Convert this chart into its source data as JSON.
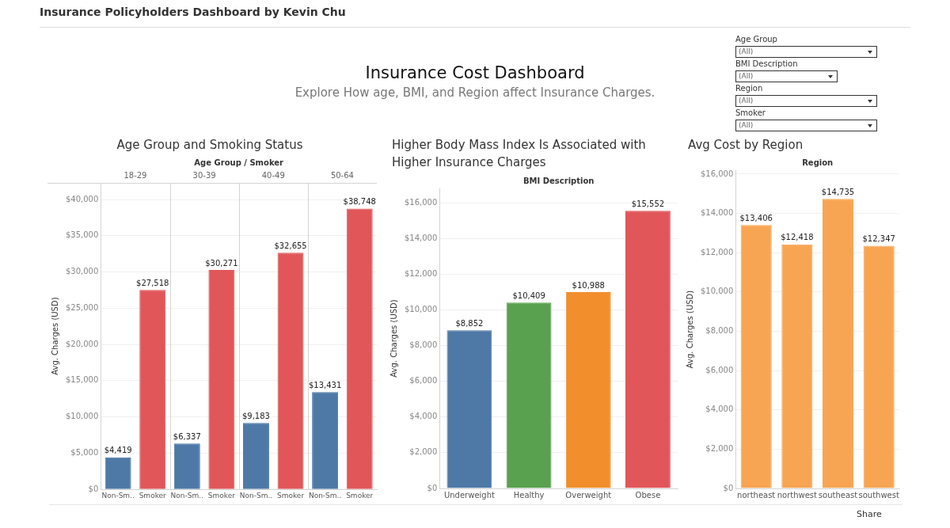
{
  "chart_data": [
    {
      "type": "other",
      "title": "Insurance Cost Dashboard",
      "subtitle": "Explore How age, BMI, and Region affect Insurance Charges.",
      "annotations": [
        "Insurance Policyholders Dashboard by Kevin Chu",
        "Age Group",
        "(All)",
        "BMI Description",
        "(All)",
        "Region",
        "(All)",
        "Smoker",
        "(All)",
        "Share"
      ]
    },
    {
      "type": "bar",
      "title": "Age Group and Smoking Status",
      "xlabel": "Age Group / Smoker",
      "ylabel": "Avg. Charges (USD)",
      "annotations": [
        "18-29",
        "30-39",
        "40-49",
        "50-64"
      ],
      "categories": [
        "Non-Sm..",
        "Smoker",
        "Non-Sm..",
        "Smoker",
        "Non-Sm..",
        "Smoker",
        "Non-Sm..",
        "Smoker"
      ],
      "values": [
        4419,
        27518,
        6337,
        30271,
        9183,
        32655,
        13431,
        38748
      ],
      "colors": [
        "#4e79a7",
        "#e15759",
        "#4e79a7",
        "#e15759",
        "#4e79a7",
        "#e15759",
        "#4e79a7",
        "#e15759"
      ],
      "value_labels": [
        "$4,419",
        "$27,518",
        "$6,337",
        "$30,271",
        "$9,183",
        "$32,655",
        "$13,431",
        "$38,748"
      ],
      "ylim": [
        0,
        42300
      ],
      "yticks": [
        {
          "value": 0,
          "label": "$0"
        },
        {
          "value": 5000,
          "label": "$5,000"
        },
        {
          "value": 10000,
          "label": "$10,000"
        },
        {
          "value": 15000,
          "label": "$15,000"
        },
        {
          "value": 20000,
          "label": "$20,000"
        },
        {
          "value": 25000,
          "label": "$25,000"
        },
        {
          "value": 30000,
          "label": "$30,000"
        },
        {
          "value": 35000,
          "label": "$35,000"
        },
        {
          "value": 40000,
          "label": "$40,000"
        }
      ],
      "grid": "y",
      "legend": false
    },
    {
      "type": "bar",
      "title": "Higher Body Mass Index Is Associated with Higher Insurance Charges",
      "xlabel": "BMI Description",
      "ylabel": "Avg. Charges (USD)",
      "categories": [
        "Underweight",
        "Healthy",
        "Overweight",
        "Obese"
      ],
      "values": [
        8852,
        10409,
        10988,
        15552
      ],
      "colors": [
        "#4e79a7",
        "#59a14f",
        "#f28e2b",
        "#e15759"
      ],
      "value_labels": [
        "$8,852",
        "$10,409",
        "$10,988",
        "$15,552"
      ],
      "ylim": [
        0,
        16800
      ],
      "yticks": [
        {
          "value": 0,
          "label": "$0"
        },
        {
          "value": 2000,
          "label": "$2,000"
        },
        {
          "value": 4000,
          "label": "$4,000"
        },
        {
          "value": 6000,
          "label": "$6,000"
        },
        {
          "value": 8000,
          "label": "$8,000"
        },
        {
          "value": 10000,
          "label": "$10,000"
        },
        {
          "value": 12000,
          "label": "$12,000"
        },
        {
          "value": 14000,
          "label": "$14,000"
        },
        {
          "value": 16000,
          "label": "$16,000"
        }
      ],
      "grid": "y",
      "legend": false
    },
    {
      "type": "bar",
      "title": "Avg Cost by Region",
      "xlabel": "Region",
      "ylabel": "Avg. Charges (USD)",
      "categories": [
        "northeast",
        "northwest",
        "southeast",
        "southwest"
      ],
      "values": [
        13406,
        12418,
        14735,
        12347
      ],
      "color": "#f8a553",
      "value_labels": [
        "$13,406",
        "$12,418",
        "$14,735",
        "$12,347"
      ],
      "ylim": [
        0,
        16200
      ],
      "yticks": [
        {
          "value": 0,
          "label": "$0"
        },
        {
          "value": 2000,
          "label": "$2,000"
        },
        {
          "value": 4000,
          "label": "$4,000"
        },
        {
          "value": 6000,
          "label": "$6,000"
        },
        {
          "value": 8000,
          "label": "$8,000"
        },
        {
          "value": 10000,
          "label": "$10,000"
        },
        {
          "value": 12000,
          "label": "$12,000"
        },
        {
          "value": 14000,
          "label": "$14,000"
        },
        {
          "value": 16000,
          "label": "$16,000"
        }
      ],
      "grid": "y",
      "legend": false
    }
  ]
}
